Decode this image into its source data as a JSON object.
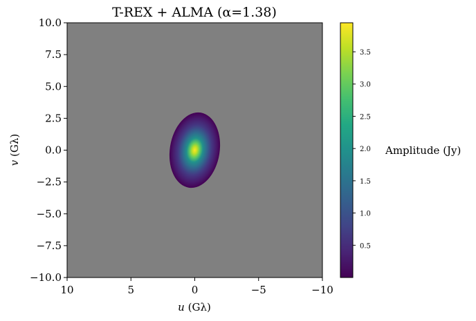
{
  "chart_data": {
    "type": "heatmap",
    "title": "T-REX + ALMA (α=1.38)",
    "xlabel": "u (Gλ)",
    "ylabel": "v (Gλ)",
    "xlim": [
      10,
      -10
    ],
    "ylim": [
      -10,
      10
    ],
    "x_ticks": [
      "10",
      "5",
      "0",
      "−5",
      "−10"
    ],
    "y_ticks": [
      "10.0",
      "7.5",
      "5.0",
      "2.5",
      "0.0",
      "−2.5",
      "−5.0",
      "−7.5",
      "−10.0"
    ],
    "background_color": "#808080",
    "colormap": "viridis",
    "colorbar": {
      "label": "Amplitude (Jy)",
      "range": [
        0.0,
        3.95
      ],
      "ticks": [
        "0.5",
        "1.0",
        "1.5",
        "2.0",
        "2.5",
        "3.0",
        "3.5"
      ]
    },
    "coverage_region": {
      "shape": "ellipse",
      "center": [
        0,
        0
      ],
      "u_semi_axis": 2.0,
      "v_semi_axis": 2.95,
      "tilt": "slight"
    },
    "peak": {
      "u": 0,
      "v": 0,
      "amplitude": 3.95
    }
  }
}
